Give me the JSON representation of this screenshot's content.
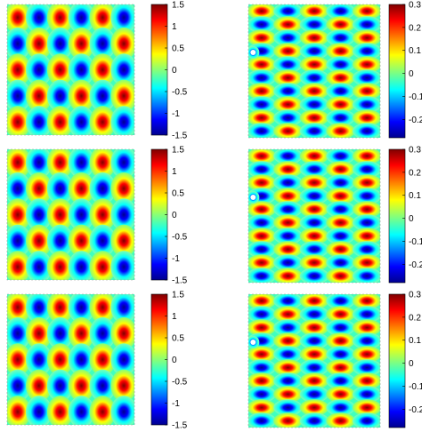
{
  "colormap": "jet",
  "colors": {
    "jet_dark_blue": "#00008f",
    "jet_blue": "#0000ff",
    "jet_cyan": "#00ffff",
    "jet_yellow": "#ffff00",
    "jet_red": "#ff0000",
    "jet_dark_red": "#800000"
  },
  "chart_data": [
    {
      "type": "heatmap",
      "pattern": "checkerboard",
      "grid_cols": 6,
      "grid_rows": 5,
      "colorbar": {
        "ticks": [
          "1.5",
          "1",
          "0.5",
          "0",
          "-0.5",
          "-1",
          "-1.5"
        ],
        "range": [
          -1.5,
          1.5
        ]
      }
    },
    {
      "type": "heatmap",
      "pattern": "horizontal-stripes-with-defect",
      "grid_cols": 5,
      "grid_rows": 10,
      "colorbar": {
        "ticks": [
          "0.3",
          "0.2",
          "0.1",
          "0",
          "-0.1",
          "-0.2"
        ],
        "range": [
          -0.28,
          0.3
        ]
      }
    },
    {
      "type": "heatmap",
      "pattern": "checkerboard",
      "grid_cols": 6,
      "grid_rows": 5,
      "colorbar": {
        "ticks": [
          "1.5",
          "1",
          "0.5",
          "0",
          "-0.5",
          "-1",
          "-1.5"
        ],
        "range": [
          -1.5,
          1.5
        ]
      }
    },
    {
      "type": "heatmap",
      "pattern": "horizontal-stripes-with-defect",
      "grid_cols": 5,
      "grid_rows": 10,
      "colorbar": {
        "ticks": [
          "0.3",
          "0.2",
          "0.1",
          "0",
          "-0.1",
          "-0.2"
        ],
        "range": [
          -0.28,
          0.3
        ]
      }
    },
    {
      "type": "heatmap",
      "pattern": "checkerboard",
      "grid_cols": 6,
      "grid_rows": 5,
      "colorbar": {
        "ticks": [
          "1.5",
          "1",
          "0.5",
          "0",
          "-0.5",
          "-1",
          "-1.5"
        ],
        "range": [
          -1.5,
          1.5
        ]
      }
    },
    {
      "type": "heatmap",
      "pattern": "horizontal-stripes-with-defect",
      "grid_cols": 5,
      "grid_rows": 10,
      "colorbar": {
        "ticks": [
          "0.3",
          "0.2",
          "0.1",
          "0",
          "-0.1",
          "-0.2"
        ],
        "range": [
          -0.28,
          0.3
        ]
      }
    }
  ]
}
